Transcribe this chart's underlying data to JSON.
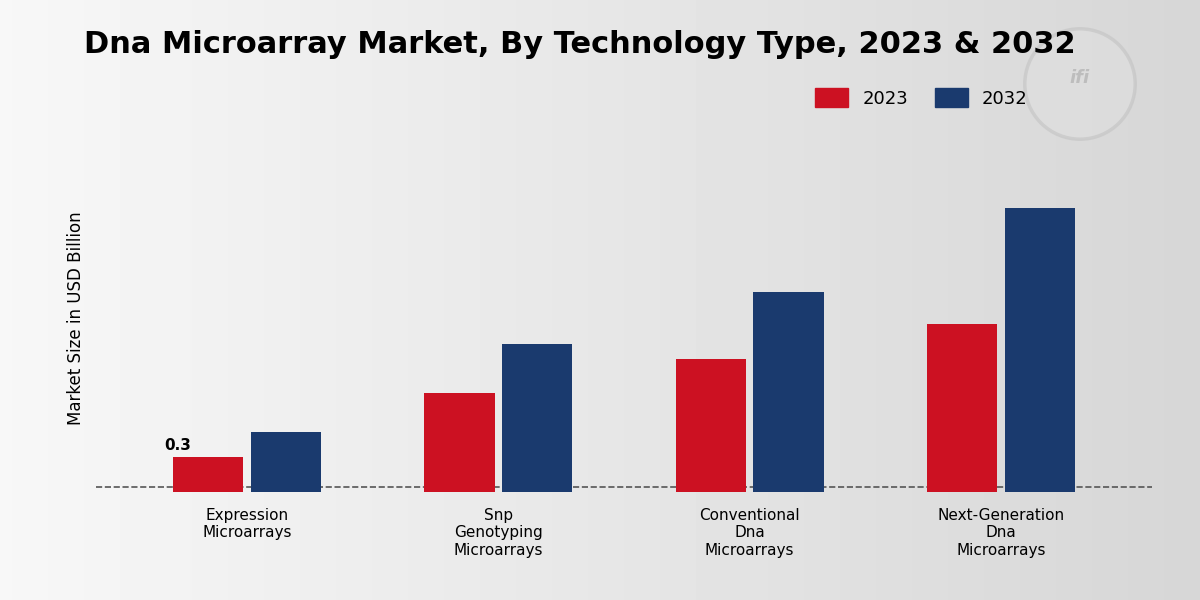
{
  "title": "Dna Microarray Market, By Technology Type, 2023 & 2032",
  "ylabel": "Market Size in USD Billion",
  "categories": [
    "Expression\nMicroarrays",
    "Snp\nGenotyping\nMicroarrays",
    "Conventional\nDna\nMicroarrays",
    "Next-Generation\nDna\nMicroarrays"
  ],
  "values_2023": [
    0.3,
    0.85,
    1.15,
    1.45
  ],
  "values_2032": [
    0.52,
    1.28,
    1.72,
    2.45
  ],
  "color_2023": "#cc1122",
  "color_2032": "#1a3a6e",
  "bar_annotation": "0.3",
  "legend_labels": [
    "2023",
    "2032"
  ],
  "title_fontsize": 22,
  "label_fontsize": 12,
  "tick_fontsize": 11,
  "ylim": [
    0,
    3.0
  ],
  "dashed_line_y": 0.04,
  "bar_width": 0.28,
  "bar_gap": 0.03,
  "bottom_bar_color": "#cc1122",
  "bg_color_left": "#f0f0f0",
  "bg_color_right": "#d0d0d0"
}
